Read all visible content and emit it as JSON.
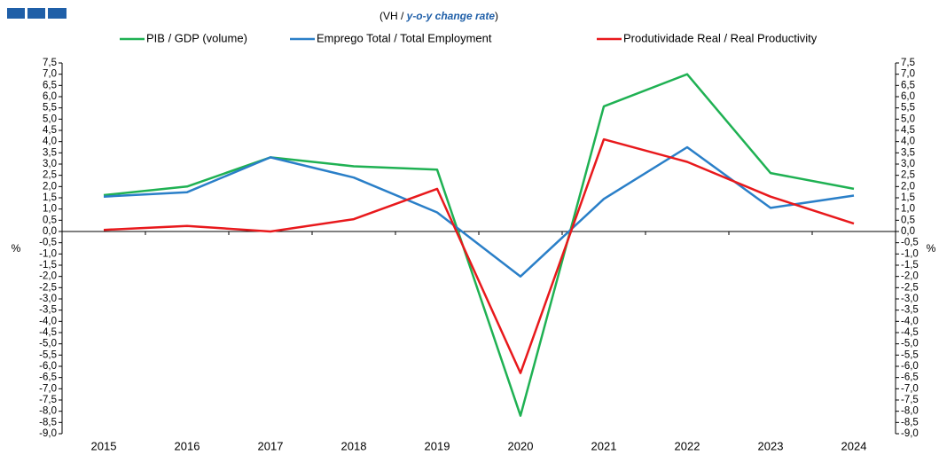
{
  "chart_data": {
    "type": "line",
    "subtitle": [
      "(VH / ",
      "y-o-y change rate",
      ")"
    ],
    "ylabel": "%",
    "categories": [
      "2015",
      "2016",
      "2017",
      "2018",
      "2019",
      "2020",
      "2021",
      "2022",
      "2023",
      "2024"
    ],
    "series": [
      {
        "name": "PIB / GDP (volume)",
        "color": "#1fb153",
        "values": [
          1.62,
          2.0,
          3.3,
          2.9,
          2.75,
          -8.2,
          5.57,
          7.0,
          2.6,
          1.9
        ]
      },
      {
        "name": "Emprego Total / Total Employment",
        "color": "#2a7fc8",
        "values": [
          1.55,
          1.75,
          3.3,
          2.4,
          0.85,
          -2.0,
          1.45,
          3.75,
          1.05,
          1.6
        ]
      },
      {
        "name": "Produtividade Real / Real Productivity",
        "color": "#e8191c",
        "values": [
          0.07,
          0.25,
          0.0,
          0.55,
          1.9,
          -6.3,
          4.1,
          3.1,
          1.55,
          0.35
        ]
      }
    ],
    "ylim": [
      -9.0,
      7.5
    ],
    "yticks": [
      {
        "value": -9.0,
        "label": "-9,0"
      },
      {
        "value": -8.5,
        "label": "-8,5"
      },
      {
        "value": -8.0,
        "label": "-8,0"
      },
      {
        "value": -7.5,
        "label": "-7,5"
      },
      {
        "value": -7.0,
        "label": "-7,0"
      },
      {
        "value": -6.5,
        "label": "-6,5"
      },
      {
        "value": -6.0,
        "label": "-6,0"
      },
      {
        "value": -5.5,
        "label": "-5,5"
      },
      {
        "value": -5.0,
        "label": "-5,0"
      },
      {
        "value": -4.5,
        "label": "-4,5"
      },
      {
        "value": -4.0,
        "label": "-4,0"
      },
      {
        "value": -3.5,
        "label": "-3,5"
      },
      {
        "value": -3.0,
        "label": "-3,0"
      },
      {
        "value": -2.5,
        "label": "-2,5"
      },
      {
        "value": -2.0,
        "label": "-2,0"
      },
      {
        "value": -1.5,
        "label": "-1,5"
      },
      {
        "value": -1.0,
        "label": "-1,0"
      },
      {
        "value": -0.5,
        "label": "-0,5"
      },
      {
        "value": 0.0,
        "label": "0,0"
      },
      {
        "value": 0.5,
        "label": "0,5"
      },
      {
        "value": 1.0,
        "label": "1,0"
      },
      {
        "value": 1.5,
        "label": "1,5"
      },
      {
        "value": 2.0,
        "label": "2,0"
      },
      {
        "value": 2.5,
        "label": "2,5"
      },
      {
        "value": 3.0,
        "label": "3,0"
      },
      {
        "value": 3.5,
        "label": "3,5"
      },
      {
        "value": 4.0,
        "label": "4,0"
      },
      {
        "value": 4.5,
        "label": "4,5"
      },
      {
        "value": 5.0,
        "label": "5,0"
      },
      {
        "value": 5.5,
        "label": "5,5"
      },
      {
        "value": 6.0,
        "label": "6,0"
      },
      {
        "value": 6.5,
        "label": "6,5"
      },
      {
        "value": 7.0,
        "label": "7,0"
      },
      {
        "value": 7.5,
        "label": "7,5"
      }
    ],
    "grid": false
  }
}
